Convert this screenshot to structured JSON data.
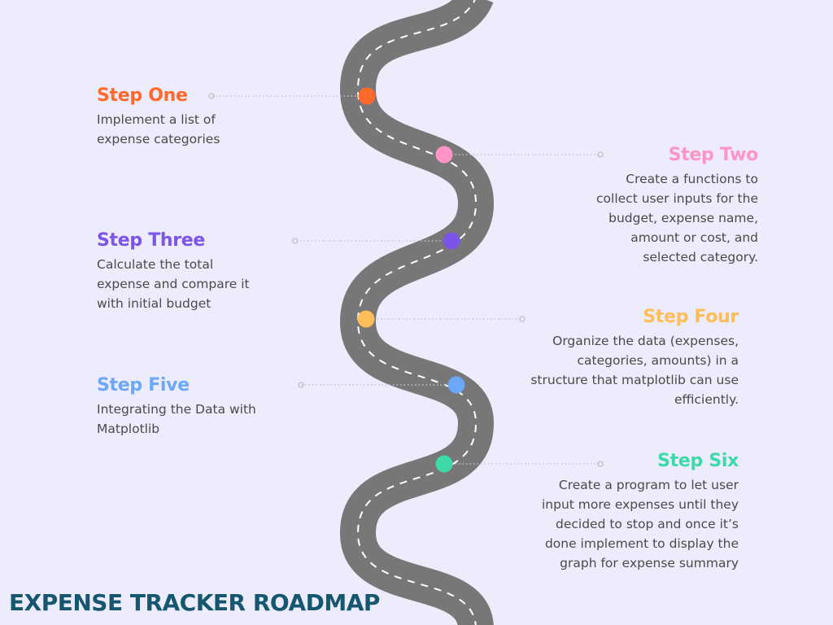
{
  "title": "EXPENSE TRACKER ROADMAP",
  "colors": {
    "background": "#ececfc",
    "road": "#777777",
    "road_dash": "#ffffff",
    "connector": "#c4c4cc",
    "title": "#14576f",
    "text": "#4a4a4a"
  },
  "steps": [
    {
      "title": "Step One",
      "description": "Implement a list of\nexpense categories",
      "color": "#ff6a2b",
      "side": "left"
    },
    {
      "title": "Step Two",
      "description": "Create a functions to\ncollect user inputs for the\nbudget, expense name,\namount or cost, and\nselected category.",
      "color": "#ff95c6",
      "side": "right"
    },
    {
      "title": "Step Three",
      "description": "Calculate the total\nexpense and compare it\nwith initial budget",
      "color": "#7c54e8",
      "side": "left"
    },
    {
      "title": "Step Four",
      "description": "Organize the data (expenses,\ncategories, amounts) in a\nstructure that matplotlib can use\nefficiently.",
      "color": "#ffbd59",
      "side": "right"
    },
    {
      "title": "Step Five",
      "description": "Integrating the Data with\nMatplotlib",
      "color": "#6ca8f8",
      "side": "left"
    },
    {
      "title": "Step Six",
      "description": "Create a program to let user\ninput more expenses until they\ndecided to stop and once it’s\ndone implement to display the\ngraph for expense summary",
      "color": "#3dd9a8",
      "side": "right"
    }
  ]
}
